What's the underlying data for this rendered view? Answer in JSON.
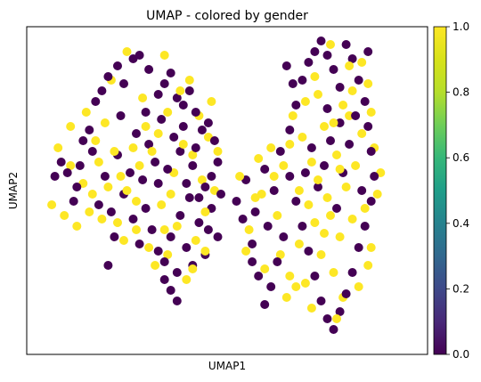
{
  "chart_data": {
    "type": "scatter",
    "title": "UMAP - colored by gender",
    "xlabel": "UMAP1",
    "ylabel": "UMAP2",
    "xticks": false,
    "yticks": false,
    "xlim": [
      -6.4,
      6.4
    ],
    "ylim": [
      -4.8,
      4.4
    ],
    "colormap": "viridis",
    "colorbar": {
      "range": [
        0.0,
        1.0
      ],
      "ticks": [
        0.0,
        0.2,
        0.4,
        0.6,
        0.8,
        1.0
      ],
      "tick_labels": [
        "0.0",
        "0.2",
        "0.4",
        "0.6",
        "0.8",
        "1.0"
      ],
      "placement": "right"
    },
    "colors": {
      "0": "#440154",
      "1": "#fde725"
    },
    "series": [
      {
        "value": 0,
        "points": [
          [
            -5.5,
            0.2
          ],
          [
            -5.3,
            0.6
          ],
          [
            -5.1,
            0.3
          ],
          [
            -4.9,
            -0.5
          ],
          [
            -4.7,
            0.5
          ],
          [
            -4.6,
            1.2
          ],
          [
            -4.4,
            1.5
          ],
          [
            -4.2,
            2.3
          ],
          [
            -4.0,
            2.6
          ],
          [
            -3.8,
            3.0
          ],
          [
            -3.5,
            3.3
          ],
          [
            -3.3,
            2.8
          ],
          [
            -3.0,
            3.5
          ],
          [
            -2.8,
            3.6
          ],
          [
            -2.5,
            3.2
          ],
          [
            -2.2,
            2.5
          ],
          [
            -2.0,
            2.8
          ],
          [
            -1.8,
            3.1
          ],
          [
            -1.6,
            2.4
          ],
          [
            -1.4,
            2.2
          ],
          [
            -1.2,
            2.6
          ],
          [
            -1.0,
            2.0
          ],
          [
            -0.8,
            1.5
          ],
          [
            -0.6,
            1.7
          ],
          [
            -0.4,
            1.2
          ],
          [
            -0.3,
            0.6
          ],
          [
            -0.5,
            0.2
          ],
          [
            -0.7,
            -0.1
          ],
          [
            -0.9,
            -0.4
          ],
          [
            -1.1,
            0.5
          ],
          [
            -1.3,
            0.0
          ],
          [
            -1.5,
            0.9
          ],
          [
            -1.7,
            1.3
          ],
          [
            -1.9,
            0.4
          ],
          [
            -2.1,
            1.8
          ],
          [
            -2.3,
            0.6
          ],
          [
            -2.5,
            1.1
          ],
          [
            -2.7,
            0.1
          ],
          [
            -2.9,
            1.4
          ],
          [
            -3.1,
            0.3
          ],
          [
            -3.3,
            -0.3
          ],
          [
            -3.5,
            0.8
          ],
          [
            -3.7,
            -0.8
          ],
          [
            -3.9,
            0.2
          ],
          [
            -4.1,
            -0.6
          ],
          [
            -3.0,
            -1.0
          ],
          [
            -2.8,
            -1.7
          ],
          [
            -2.6,
            -0.7
          ],
          [
            -2.4,
            -1.3
          ],
          [
            -2.2,
            -1.9
          ],
          [
            -2.0,
            -2.2
          ],
          [
            -1.8,
            -1.5
          ],
          [
            -1.6,
            -2.5
          ],
          [
            -1.5,
            -0.9
          ],
          [
            -1.3,
            -1.8
          ],
          [
            -1.1,
            -2.3
          ],
          [
            -0.9,
            -1.1
          ],
          [
            -0.7,
            -2.0
          ],
          [
            -0.5,
            -0.7
          ],
          [
            -0.3,
            -1.5
          ],
          [
            -1.8,
            -3.0
          ],
          [
            -1.6,
            -3.3
          ],
          [
            -2.0,
            -2.7
          ],
          [
            -1.2,
            -0.4
          ],
          [
            -3.6,
            -1.5
          ],
          [
            -3.8,
            -2.3
          ],
          [
            -0.2,
            -0.3
          ],
          [
            -1.4,
            1.6
          ],
          [
            -2.6,
            2.0
          ],
          [
            -3.4,
            1.9
          ],
          [
            -4.3,
            0.9
          ],
          [
            -4.8,
            -0.1
          ],
          [
            -1.0,
            1.0
          ],
          [
            -0.6,
            -1.3
          ],
          [
            -2.2,
            0.0
          ],
          [
            0.3,
            -0.5
          ],
          [
            0.6,
            0.1
          ],
          [
            0.9,
            -0.8
          ],
          [
            1.2,
            0.4
          ],
          [
            1.5,
            -0.2
          ],
          [
            1.7,
            0.9
          ],
          [
            2.0,
            1.5
          ],
          [
            2.2,
            2.2
          ],
          [
            2.4,
            2.9
          ],
          [
            2.6,
            3.4
          ],
          [
            2.8,
            3.7
          ],
          [
            3.0,
            4.0
          ],
          [
            3.2,
            3.6
          ],
          [
            3.4,
            3.2
          ],
          [
            3.6,
            2.7
          ],
          [
            3.8,
            3.9
          ],
          [
            4.0,
            3.5
          ],
          [
            4.2,
            2.9
          ],
          [
            4.4,
            2.3
          ],
          [
            4.5,
            1.6
          ],
          [
            4.6,
            0.9
          ],
          [
            4.7,
            0.2
          ],
          [
            4.6,
            -0.5
          ],
          [
            4.4,
            -1.2
          ],
          [
            4.2,
            -1.8
          ],
          [
            4.0,
            -2.5
          ],
          [
            3.8,
            -3.1
          ],
          [
            3.6,
            -3.6
          ],
          [
            3.4,
            -4.1
          ],
          [
            3.2,
            -3.8
          ],
          [
            3.0,
            -3.3
          ],
          [
            2.8,
            -2.6
          ],
          [
            2.6,
            -1.9
          ],
          [
            2.4,
            -1.2
          ],
          [
            2.2,
            -0.5
          ],
          [
            2.0,
            0.2
          ],
          [
            1.8,
            -1.5
          ],
          [
            1.6,
            -2.2
          ],
          [
            1.4,
            -2.9
          ],
          [
            1.2,
            -3.4
          ],
          [
            1.0,
            -2.6
          ],
          [
            0.8,
            -1.7
          ],
          [
            0.5,
            -1.0
          ],
          [
            3.3,
            1.2
          ],
          [
            3.1,
            0.5
          ],
          [
            2.9,
            -0.1
          ],
          [
            3.5,
            -0.7
          ],
          [
            3.7,
            0.3
          ],
          [
            3.9,
            1.1
          ],
          [
            4.1,
            1.9
          ],
          [
            2.7,
            1.0
          ],
          [
            2.5,
            0.3
          ],
          [
            3.2,
            2.1
          ],
          [
            4.3,
            -0.2
          ],
          [
            1.3,
            -1.2
          ],
          [
            0.8,
            -2.2
          ],
          [
            3.6,
            1.7
          ],
          [
            2.1,
            2.8
          ],
          [
            1.9,
            3.3
          ],
          [
            4.5,
            3.7
          ]
        ]
      },
      {
        "value": 1,
        "points": [
          [
            -5.6,
            -0.6
          ],
          [
            -5.4,
            1.0
          ],
          [
            -5.2,
            -0.9
          ],
          [
            -5.0,
            1.6
          ],
          [
            -4.8,
            -1.2
          ],
          [
            -4.5,
            2.0
          ],
          [
            -4.3,
            -0.3
          ],
          [
            -4.1,
            0.6
          ],
          [
            -3.9,
            1.7
          ],
          [
            -3.7,
            2.9
          ],
          [
            -3.5,
            -1.1
          ],
          [
            -3.4,
            0.2
          ],
          [
            -3.2,
            3.7
          ],
          [
            -3.0,
            1.0
          ],
          [
            -2.9,
            -0.5
          ],
          [
            -2.7,
            2.4
          ],
          [
            -2.5,
            -1.8
          ],
          [
            -2.4,
            0.9
          ],
          [
            -2.2,
            1.4
          ],
          [
            -2.1,
            -0.6
          ],
          [
            -1.9,
            2.0
          ],
          [
            -1.7,
            0.3
          ],
          [
            -1.6,
            -1.2
          ],
          [
            -1.4,
            1.1
          ],
          [
            -1.3,
            -2.7
          ],
          [
            -1.1,
            0.8
          ],
          [
            -1.0,
            -1.6
          ],
          [
            -0.9,
            1.9
          ],
          [
            -0.8,
            0.1
          ],
          [
            -0.7,
            -0.8
          ],
          [
            -0.6,
            1.3
          ],
          [
            -0.4,
            -0.2
          ],
          [
            -0.5,
            2.3
          ],
          [
            -1.2,
            2.9
          ],
          [
            -2.0,
            -1.3
          ],
          [
            -2.3,
            -2.3
          ],
          [
            -2.8,
            0.5
          ],
          [
            -3.2,
            -0.2
          ],
          [
            -3.6,
            0.9
          ],
          [
            -4.0,
            -1.0
          ],
          [
            -4.2,
            1.2
          ],
          [
            -4.6,
            0.0
          ],
          [
            -5.0,
            0.5
          ],
          [
            -3.3,
            -1.6
          ],
          [
            -2.6,
            1.6
          ],
          [
            -1.8,
            -0.3
          ],
          [
            -1.5,
            2.6
          ],
          [
            -0.3,
            0.9
          ],
          [
            -1.9,
            -2.0
          ],
          [
            -2.9,
            -1.3
          ],
          [
            -3.8,
            -0.1
          ],
          [
            -1.1,
            -2.4
          ],
          [
            -0.7,
            -1.9
          ],
          [
            -4.4,
            -0.8
          ],
          [
            -2.0,
            3.6
          ],
          [
            0.4,
            0.2
          ],
          [
            0.7,
            -1.3
          ],
          [
            1.0,
            0.7
          ],
          [
            1.1,
            -0.3
          ],
          [
            1.4,
            1.0
          ],
          [
            1.6,
            -0.9
          ],
          [
            1.8,
            0.5
          ],
          [
            2.0,
            -2.6
          ],
          [
            2.1,
            1.9
          ],
          [
            2.3,
            -0.2
          ],
          [
            2.4,
            1.3
          ],
          [
            2.5,
            -2.8
          ],
          [
            2.7,
            0.6
          ],
          [
            2.8,
            -1.1
          ],
          [
            2.9,
            2.5
          ],
          [
            3.0,
            -2.0
          ],
          [
            3.1,
            1.6
          ],
          [
            3.2,
            -0.4
          ],
          [
            3.3,
            3.9
          ],
          [
            3.4,
            -2.5
          ],
          [
            3.5,
            0.8
          ],
          [
            3.6,
            -1.5
          ],
          [
            3.7,
            2.2
          ],
          [
            3.8,
            -0.1
          ],
          [
            3.9,
            3.3
          ],
          [
            4.0,
            -1.0
          ],
          [
            4.1,
            0.5
          ],
          [
            4.2,
            -2.9
          ],
          [
            4.3,
            1.4
          ],
          [
            4.4,
            -0.7
          ],
          [
            4.5,
            2.8
          ],
          [
            4.6,
            -1.8
          ],
          [
            4.7,
            1.0
          ],
          [
            4.8,
            -0.3
          ],
          [
            4.9,
            0.3
          ],
          [
            4.5,
            -2.3
          ],
          [
            4.3,
            3.4
          ],
          [
            4.0,
            2.6
          ],
          [
            3.7,
            -3.2
          ],
          [
            3.4,
            1.7
          ],
          [
            3.1,
            -1.4
          ],
          [
            2.8,
            3.0
          ],
          [
            2.6,
            -0.6
          ],
          [
            2.3,
            -1.7
          ],
          [
            2.0,
            1.1
          ],
          [
            1.7,
            -2.0
          ],
          [
            1.5,
            0.2
          ],
          [
            1.2,
            -2.4
          ],
          [
            0.9,
            -0.4
          ],
          [
            0.6,
            -1.9
          ],
          [
            1.9,
            -3.2
          ],
          [
            2.7,
            -3.5
          ],
          [
            3.5,
            -3.8
          ],
          [
            2.2,
            -2.9
          ],
          [
            3.9,
            1.9
          ],
          [
            4.6,
            2.0
          ],
          [
            2.5,
            2.3
          ],
          [
            2.9,
            0.1
          ],
          [
            3.3,
            -0.9
          ],
          [
            3.6,
            0.4
          ]
        ]
      }
    ]
  }
}
